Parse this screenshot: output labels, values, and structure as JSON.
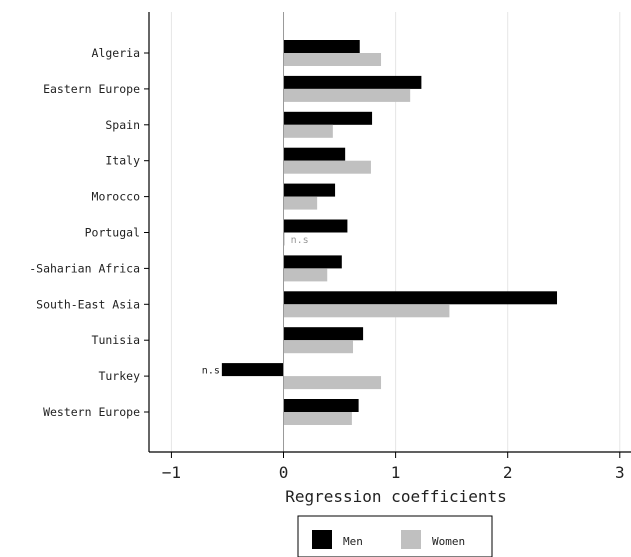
{
  "chart_data": {
    "type": "bar",
    "orientation": "horizontal",
    "categories": [
      "Algeria",
      "Eastern Europe",
      "Spain",
      "Italy",
      "Morocco",
      "Portugal",
      "-Saharian Africa",
      "South-East Asia",
      "Tunisia",
      "Turkey",
      "Western Europe"
    ],
    "series": [
      {
        "name": "Men",
        "color": "#000000",
        "values": [
          0.68,
          1.23,
          0.79,
          0.55,
          0.46,
          0.57,
          0.52,
          2.44,
          0.71,
          -0.55,
          0.67
        ],
        "labels": [
          "",
          "",
          "",
          "",
          "",
          "",
          "",
          "",
          "",
          "n.s",
          ""
        ]
      },
      {
        "name": "Women",
        "color": "#c0c0c0",
        "values": [
          0.87,
          1.13,
          0.44,
          0.78,
          0.3,
          0.01,
          0.39,
          1.48,
          0.62,
          0.87,
          0.61
        ],
        "labels": [
          "",
          "",
          "",
          "",
          "",
          "n.s",
          "",
          "",
          "",
          "",
          ""
        ]
      }
    ],
    "xlabel": "Regression coefficients",
    "ylabel": "",
    "title": "",
    "xlim": [
      -1.2,
      3.1
    ],
    "xticks": [
      -1,
      0,
      1,
      2,
      3
    ],
    "xtick_labels": [
      "−1",
      "0",
      "1",
      "2",
      "3"
    ],
    "grid": "vertical",
    "legend": "bottom"
  }
}
